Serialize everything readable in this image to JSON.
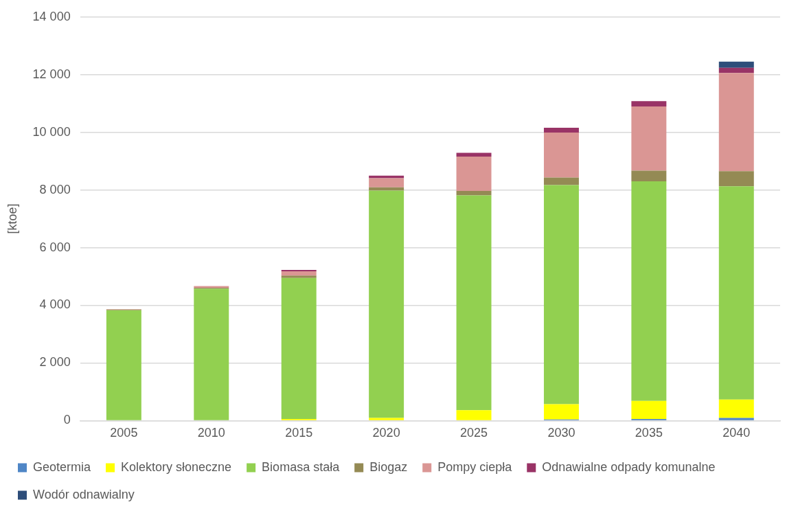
{
  "chart_data": {
    "type": "bar",
    "stacked": true,
    "ylabel": "[ktoe]",
    "categories": [
      "2005",
      "2010",
      "2015",
      "2020",
      "2025",
      "2030",
      "2035",
      "2040"
    ],
    "series": [
      {
        "name": "Geotermia",
        "color": "#4f86c6",
        "values": [
          0,
          0,
          0,
          null,
          null,
          40,
          60,
          90
        ]
      },
      {
        "name": "Kolektory słoneczne",
        "color": "#ffff00",
        "values": [
          0,
          0,
          60,
          90,
          360,
          530,
          620,
          640
        ]
      },
      {
        "name": "Biomasa stała",
        "color": "#92d050",
        "values": [
          3830,
          4570,
          4890,
          7890,
          7450,
          7600,
          7620,
          7400
        ]
      },
      {
        "name": "Biogaz",
        "color": "#948a54",
        "values": [
          20,
          40,
          80,
          110,
          160,
          260,
          370,
          520
        ]
      },
      {
        "name": "Pompy ciepła",
        "color": "#da9694",
        "values": [
          20,
          60,
          150,
          320,
          1190,
          1560,
          2230,
          3410
        ]
      },
      {
        "name": "Odnawialne odpady komunalne",
        "color": "#993366",
        "values": [
          null,
          null,
          50,
          90,
          130,
          170,
          180,
          180
        ]
      },
      {
        "name": "Wodór odnawialny",
        "color": "#2e4e7a",
        "values": [
          0,
          0,
          0,
          0,
          0,
          0,
          null,
          210
        ]
      }
    ],
    "ylim": [
      0,
      14000
    ],
    "yticks": [
      {
        "value": 0,
        "label": "0"
      },
      {
        "value": 2000,
        "label": "2 000"
      },
      {
        "value": 4000,
        "label": "4 000"
      },
      {
        "value": 6000,
        "label": "6 000"
      },
      {
        "value": 8000,
        "label": "8 000"
      },
      {
        "value": 10000,
        "label": "10 000"
      },
      {
        "value": 12000,
        "label": "12 000"
      },
      {
        "value": 14000,
        "label": "14 000"
      }
    ],
    "grid": "y",
    "legend": "bottom"
  }
}
